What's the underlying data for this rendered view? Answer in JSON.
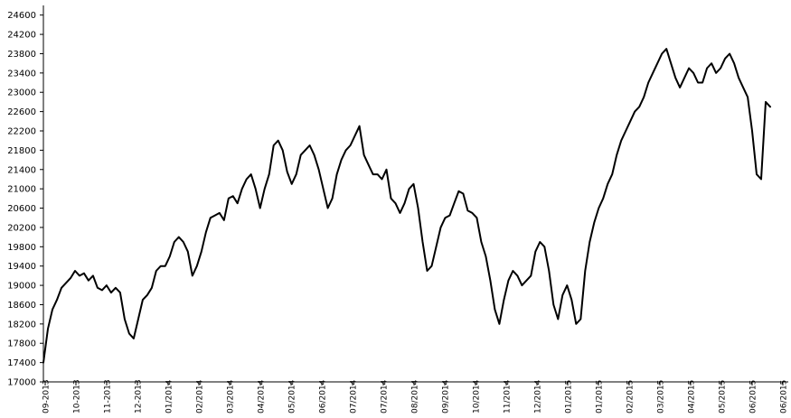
{
  "chart_data": {
    "type": "line",
    "title": "",
    "xlabel": "",
    "ylabel": "",
    "ylim": [
      17000,
      24800
    ],
    "yticks": [
      17000,
      17400,
      17800,
      18200,
      18600,
      19000,
      19400,
      19800,
      20200,
      20600,
      21000,
      21400,
      21800,
      22200,
      22600,
      23000,
      23400,
      23800,
      24200,
      24600
    ],
    "xticks": [
      "09-2013",
      "10-2013",
      "11-2013",
      "12-2013",
      "01/2014",
      "02/2014",
      "03/2014",
      "04/2014",
      "05/2014",
      "06/2014",
      "07/2014",
      "07/2014",
      "08/2014",
      "09/2014",
      "10/2014",
      "11/2014",
      "12/2014",
      "01/2015",
      "01/2015",
      "02/2015",
      "03/2015",
      "04/2015",
      "05/2015",
      "06/2015",
      "06/2015"
    ],
    "grid": false,
    "legend": "none",
    "x_range": [
      0,
      165
    ],
    "series": [
      {
        "color": "#000000",
        "x_start": 0,
        "values": [
          17400,
          18100,
          18500,
          18700,
          18950,
          19050,
          19150,
          19300,
          19200,
          19250,
          19100,
          19200,
          18950,
          18900,
          19000,
          18850,
          18950,
          18850,
          18300,
          18000,
          17900,
          18300,
          18700,
          18800,
          18950,
          19300,
          19400,
          19400,
          19600,
          19900,
          20000,
          19900,
          19700,
          19200,
          19400,
          19700,
          20100,
          20400,
          20450,
          20500,
          20350,
          20800,
          20850,
          20700,
          21000,
          21200,
          21300,
          21000,
          20600,
          21000,
          21300,
          21900,
          22000,
          21800,
          21350,
          21100,
          21300,
          21700,
          21800,
          21900,
          21700,
          21400,
          21000,
          20600,
          20800,
          21300,
          21600,
          21800,
          21900,
          22100,
          22300,
          21700,
          21500,
          21300,
          21300,
          21200,
          21400,
          20800,
          20700,
          20500,
          20700,
          21000,
          21100,
          20600,
          19900,
          19300,
          19400,
          19800,
          20200,
          20400,
          20450,
          20700,
          20950,
          20900,
          20550,
          20500,
          20400,
          19900,
          19600,
          19100,
          18500,
          18200,
          18700,
          19100,
          19300,
          19200,
          19000,
          19100,
          19200,
          19700,
          19900,
          19800,
          19300,
          18600,
          18300,
          18800,
          19000,
          18700,
          18200,
          18300,
          19300,
          19900,
          20300,
          20600,
          20800,
          21100,
          21300,
          21700,
          22000,
          22200,
          22400,
          22600,
          22700,
          22900,
          23200,
          23400,
          23600,
          23800,
          23900,
          23600,
          23300,
          23100,
          23300,
          23500,
          23400,
          23200,
          23200,
          23500,
          23600,
          23400,
          23500,
          23700,
          23800,
          23600,
          23300,
          23100,
          22900,
          22200,
          21300,
          21200,
          22800,
          22700
        ]
      },
      {
        "color": "#7a9a3a",
        "x_start": 0,
        "values": []
      },
      {
        "color": "#8cc63f",
        "x_start": 0,
        "values": []
      },
      {
        "color": "#c5dba0",
        "x_start": 0,
        "values": []
      },
      {
        "color": "#f6b700",
        "x_start": 0,
        "values": []
      },
      {
        "color": "#e8312a",
        "x_start": 0,
        "values": []
      },
      {
        "color": "#c8201d",
        "x_start": 0,
        "values": []
      },
      {
        "color": "#6b1e1e",
        "x_start": 0,
        "values": []
      }
    ]
  }
}
